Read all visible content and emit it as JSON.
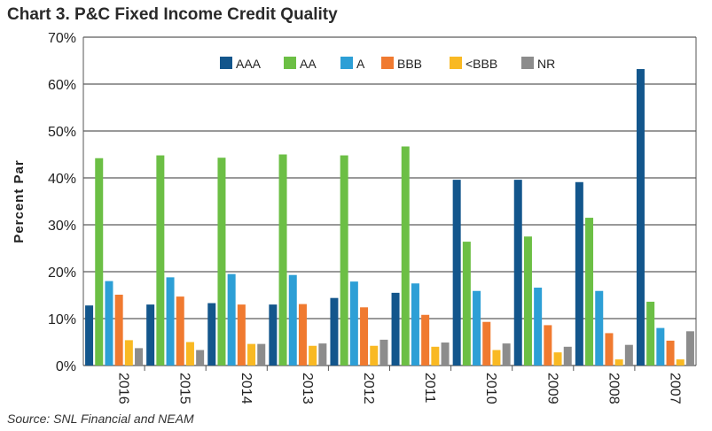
{
  "title": "Chart 3. P&C Fixed Income Credit Quality",
  "source": "Source: SNL Financial and NEAM",
  "chart_data": {
    "type": "bar",
    "title": "Chart 3. P&C Fixed Income Credit Quality",
    "xlabel": "",
    "ylabel": "Percent Par",
    "ylim": [
      0,
      70
    ],
    "yticks": [
      0,
      10,
      20,
      30,
      40,
      50,
      60,
      70
    ],
    "ytick_labels": [
      "0%",
      "10%",
      "20%",
      "30%",
      "40%",
      "50%",
      "60%",
      "70%"
    ],
    "grid": true,
    "legend_position": "top-center",
    "categories": [
      "2016",
      "2015",
      "2014",
      "2013",
      "2012",
      "2011",
      "2010",
      "2009",
      "2008",
      "2007"
    ],
    "series": [
      {
        "name": "AAA",
        "color": "#13568c",
        "values": [
          12.8,
          13.0,
          13.3,
          13.0,
          14.4,
          15.5,
          39.6,
          39.6,
          39.1,
          63.2
        ]
      },
      {
        "name": "AA",
        "color": "#6cbf45",
        "values": [
          44.2,
          44.8,
          44.3,
          45.0,
          44.8,
          46.7,
          26.4,
          27.5,
          31.5,
          13.6
        ]
      },
      {
        "name": "A",
        "color": "#2d9fd6",
        "values": [
          18.0,
          18.8,
          19.5,
          19.3,
          17.9,
          17.5,
          15.9,
          16.6,
          15.9,
          8.0
        ]
      },
      {
        "name": "BBB",
        "color": "#f07a30",
        "values": [
          15.1,
          14.7,
          13.0,
          13.1,
          12.4,
          10.8,
          9.3,
          8.6,
          6.9,
          5.3
        ]
      },
      {
        "name": "<BBB",
        "color": "#f9b923",
        "values": [
          5.4,
          5.0,
          4.6,
          4.2,
          4.2,
          4.0,
          3.3,
          2.8,
          1.3,
          1.3
        ]
      },
      {
        "name": "NR",
        "color": "#8c8c8c",
        "values": [
          3.7,
          3.3,
          4.6,
          4.7,
          5.5,
          4.9,
          4.7,
          4.0,
          4.4,
          7.3
        ]
      }
    ]
  }
}
